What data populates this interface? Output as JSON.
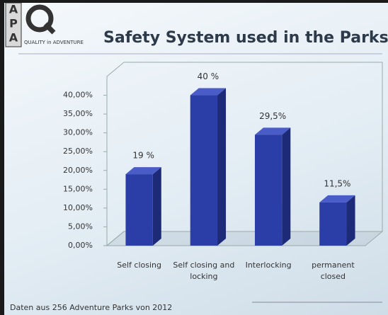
{
  "logo": {
    "letters": [
      "A",
      "P",
      "A"
    ],
    "tagline": "QUALITY in ADVENTURE"
  },
  "footer": "Daten aus 256 Adventure Parks von 2012",
  "chart_data": {
    "type": "bar3d",
    "title": "Safety System used in the Parks",
    "categories": [
      "Self closing",
      "Self closing and locking",
      "Interlocking",
      "permanent closed"
    ],
    "values": [
      19,
      40,
      29.5,
      11.5
    ],
    "value_labels": [
      "19 %",
      "40 %",
      "29,5%",
      "11,5%"
    ],
    "color": "#2b3ea8",
    "ylim": [
      0,
      45
    ],
    "yticks": [
      {
        "value": 0,
        "label": "0,00%"
      },
      {
        "value": 5,
        "label": "5,00%"
      },
      {
        "value": 10,
        "label": "10,00%"
      },
      {
        "value": 15,
        "label": "15,00%"
      },
      {
        "value": 20,
        "label": "20,00%"
      },
      {
        "value": 25,
        "label": "25,00%"
      },
      {
        "value": 30,
        "label": "30,00%"
      },
      {
        "value": 35,
        "label": "35,00%"
      },
      {
        "value": 40,
        "label": "40,00%"
      }
    ],
    "grid": false
  }
}
